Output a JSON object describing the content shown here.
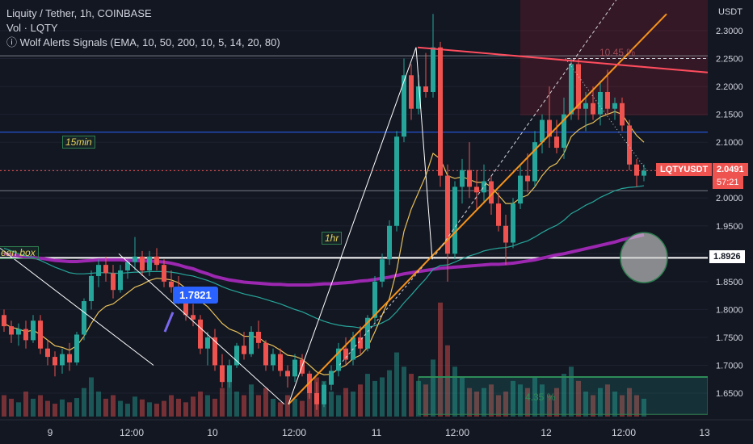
{
  "header": {
    "pair": "Liquity / Tether, 1h, COINBASE",
    "volume": "Vol · LQTY",
    "indicator_icon": "info-icon",
    "indicator": "Wolf Alerts Signals (EMA, 10, 50, 200, 10, 5, 14, 20, 80)"
  },
  "axis": {
    "currency": "USDT",
    "y_ticks": [
      "2.3000",
      "2.2500",
      "2.2000",
      "2.1500",
      "2.1000",
      "2.0500",
      "2.0000",
      "1.9500",
      "1.9000",
      "1.8500",
      "1.8000",
      "1.7500",
      "1.7000",
      "1.6500"
    ],
    "y_tick_values": [
      2.3,
      2.25,
      2.2,
      2.15,
      2.1,
      2.05,
      2.0,
      1.95,
      1.9,
      1.85,
      1.8,
      1.75,
      1.7,
      1.65
    ],
    "x_ticks": [
      "9",
      "12:00",
      "10",
      "12:00",
      "11",
      "12:00",
      "12",
      "12:00",
      "13"
    ]
  },
  "labels": {
    "box_15min": "15min",
    "box_1hr": "1hr",
    "box_green": "een box",
    "callout": "1.7821",
    "pct_upper": "10.45 %",
    "pct_lower": "4.35 %",
    "symbol_tag": "LQTYUSDT",
    "last_price": "2.0491",
    "countdown": "57:21",
    "white_line_price": "1.8926"
  },
  "colors": {
    "background": "#131722",
    "bull": "#26a69a",
    "bear": "#ef5350",
    "ema_short": "#e8c15a",
    "ema_mid": "#26a69a",
    "ema_long": "#9c27b0",
    "orange_trend": "#f7931a",
    "red_trend": "#ff4d5e",
    "blue_level": "#2962ff"
  },
  "chart_data": {
    "type": "candlestick",
    "symbol": "LQTYUSDT",
    "timeframe": "1h",
    "ylim": [
      1.61,
      2.33
    ],
    "levels": {
      "blue": 2.118,
      "gray_upper": 2.255,
      "gray_lower": 2.013,
      "white": 1.8926,
      "last_price": 2.0491
    },
    "candles": [
      {
        "o": 1.79,
        "h": 1.8,
        "l": 1.76,
        "c": 1.77
      },
      {
        "o": 1.77,
        "h": 1.78,
        "l": 1.74,
        "c": 1.755
      },
      {
        "o": 1.755,
        "h": 1.775,
        "l": 1.735,
        "c": 1.765
      },
      {
        "o": 1.765,
        "h": 1.78,
        "l": 1.73,
        "c": 1.745
      },
      {
        "o": 1.745,
        "h": 1.79,
        "l": 1.74,
        "c": 1.78
      },
      {
        "o": 1.78,
        "h": 1.79,
        "l": 1.72,
        "c": 1.73
      },
      {
        "o": 1.73,
        "h": 1.745,
        "l": 1.7,
        "c": 1.715
      },
      {
        "o": 1.715,
        "h": 1.725,
        "l": 1.68,
        "c": 1.7
      },
      {
        "o": 1.7,
        "h": 1.73,
        "l": 1.685,
        "c": 1.72
      },
      {
        "o": 1.72,
        "h": 1.74,
        "l": 1.69,
        "c": 1.705
      },
      {
        "o": 1.705,
        "h": 1.76,
        "l": 1.7,
        "c": 1.755
      },
      {
        "o": 1.755,
        "h": 1.82,
        "l": 1.745,
        "c": 1.815
      },
      {
        "o": 1.815,
        "h": 1.87,
        "l": 1.8,
        "c": 1.86
      },
      {
        "o": 1.86,
        "h": 1.89,
        "l": 1.84,
        "c": 1.88
      },
      {
        "o": 1.88,
        "h": 1.895,
        "l": 1.85,
        "c": 1.865
      },
      {
        "o": 1.865,
        "h": 1.88,
        "l": 1.82,
        "c": 1.835
      },
      {
        "o": 1.835,
        "h": 1.88,
        "l": 1.83,
        "c": 1.87
      },
      {
        "o": 1.87,
        "h": 1.89,
        "l": 1.855,
        "c": 1.885
      },
      {
        "o": 1.885,
        "h": 1.93,
        "l": 1.87,
        "c": 1.895
      },
      {
        "o": 1.895,
        "h": 1.905,
        "l": 1.86,
        "c": 1.87
      },
      {
        "o": 1.87,
        "h": 1.905,
        "l": 1.86,
        "c": 1.895
      },
      {
        "o": 1.895,
        "h": 1.91,
        "l": 1.87,
        "c": 1.88
      },
      {
        "o": 1.88,
        "h": 1.89,
        "l": 1.84,
        "c": 1.85
      },
      {
        "o": 1.85,
        "h": 1.87,
        "l": 1.83,
        "c": 1.84
      },
      {
        "o": 1.84,
        "h": 1.86,
        "l": 1.81,
        "c": 1.82
      },
      {
        "o": 1.82,
        "h": 1.83,
        "l": 1.78,
        "c": 1.79
      },
      {
        "o": 1.79,
        "h": 1.81,
        "l": 1.77,
        "c": 1.782
      },
      {
        "o": 1.782,
        "h": 1.79,
        "l": 1.72,
        "c": 1.73
      },
      {
        "o": 1.73,
        "h": 1.76,
        "l": 1.7,
        "c": 1.75
      },
      {
        "o": 1.75,
        "h": 1.765,
        "l": 1.69,
        "c": 1.7
      },
      {
        "o": 1.7,
        "h": 1.72,
        "l": 1.66,
        "c": 1.67
      },
      {
        "o": 1.67,
        "h": 1.71,
        "l": 1.66,
        "c": 1.7
      },
      {
        "o": 1.7,
        "h": 1.74,
        "l": 1.695,
        "c": 1.735
      },
      {
        "o": 1.735,
        "h": 1.76,
        "l": 1.71,
        "c": 1.72
      },
      {
        "o": 1.72,
        "h": 1.77,
        "l": 1.715,
        "c": 1.76
      },
      {
        "o": 1.76,
        "h": 1.78,
        "l": 1.73,
        "c": 1.74
      },
      {
        "o": 1.74,
        "h": 1.745,
        "l": 1.69,
        "c": 1.7
      },
      {
        "o": 1.7,
        "h": 1.73,
        "l": 1.69,
        "c": 1.72
      },
      {
        "o": 1.72,
        "h": 1.73,
        "l": 1.68,
        "c": 1.69
      },
      {
        "o": 1.69,
        "h": 1.7,
        "l": 1.66,
        "c": 1.68
      },
      {
        "o": 1.68,
        "h": 1.72,
        "l": 1.67,
        "c": 1.71
      },
      {
        "o": 1.71,
        "h": 1.72,
        "l": 1.68,
        "c": 1.685
      },
      {
        "o": 1.685,
        "h": 1.69,
        "l": 1.64,
        "c": 1.65
      },
      {
        "o": 1.65,
        "h": 1.67,
        "l": 1.62,
        "c": 1.63
      },
      {
        "o": 1.63,
        "h": 1.67,
        "l": 1.625,
        "c": 1.665
      },
      {
        "o": 1.665,
        "h": 1.7,
        "l": 1.655,
        "c": 1.69
      },
      {
        "o": 1.69,
        "h": 1.74,
        "l": 1.68,
        "c": 1.73
      },
      {
        "o": 1.73,
        "h": 1.75,
        "l": 1.7,
        "c": 1.71
      },
      {
        "o": 1.71,
        "h": 1.76,
        "l": 1.7,
        "c": 1.75
      },
      {
        "o": 1.75,
        "h": 1.77,
        "l": 1.72,
        "c": 1.73
      },
      {
        "o": 1.73,
        "h": 1.79,
        "l": 1.725,
        "c": 1.785
      },
      {
        "o": 1.785,
        "h": 1.86,
        "l": 1.775,
        "c": 1.85
      },
      {
        "o": 1.85,
        "h": 1.9,
        "l": 1.84,
        "c": 1.89
      },
      {
        "o": 1.89,
        "h": 1.96,
        "l": 1.88,
        "c": 1.95
      },
      {
        "o": 1.95,
        "h": 2.12,
        "l": 1.94,
        "c": 2.11
      },
      {
        "o": 2.11,
        "h": 2.25,
        "l": 2.1,
        "c": 2.22
      },
      {
        "o": 2.22,
        "h": 2.24,
        "l": 2.14,
        "c": 2.16
      },
      {
        "o": 2.16,
        "h": 2.22,
        "l": 2.15,
        "c": 2.2
      },
      {
        "o": 2.2,
        "h": 2.26,
        "l": 2.18,
        "c": 2.19
      },
      {
        "o": 2.19,
        "h": 2.33,
        "l": 2.18,
        "c": 2.27
      },
      {
        "o": 2.27,
        "h": 2.28,
        "l": 2.02,
        "c": 2.04
      },
      {
        "o": 2.04,
        "h": 2.06,
        "l": 1.85,
        "c": 1.9
      },
      {
        "o": 1.9,
        "h": 2.03,
        "l": 1.89,
        "c": 2.02
      },
      {
        "o": 2.02,
        "h": 2.07,
        "l": 1.99,
        "c": 2.05
      },
      {
        "o": 2.05,
        "h": 2.1,
        "l": 2.0,
        "c": 2.02
      },
      {
        "o": 2.02,
        "h": 2.05,
        "l": 1.98,
        "c": 2.01
      },
      {
        "o": 2.01,
        "h": 2.06,
        "l": 1.99,
        "c": 2.03
      },
      {
        "o": 2.03,
        "h": 2.04,
        "l": 1.97,
        "c": 1.99
      },
      {
        "o": 1.99,
        "h": 2.01,
        "l": 1.94,
        "c": 1.95
      },
      {
        "o": 1.95,
        "h": 1.97,
        "l": 1.88,
        "c": 1.92
      },
      {
        "o": 1.92,
        "h": 2.0,
        "l": 1.91,
        "c": 1.99
      },
      {
        "o": 1.99,
        "h": 2.06,
        "l": 1.98,
        "c": 2.04
      },
      {
        "o": 2.04,
        "h": 2.08,
        "l": 2.01,
        "c": 2.03
      },
      {
        "o": 2.03,
        "h": 2.12,
        "l": 2.02,
        "c": 2.1
      },
      {
        "o": 2.1,
        "h": 2.15,
        "l": 2.08,
        "c": 2.14
      },
      {
        "o": 2.14,
        "h": 2.2,
        "l": 2.09,
        "c": 2.11
      },
      {
        "o": 2.11,
        "h": 2.14,
        "l": 2.08,
        "c": 2.09
      },
      {
        "o": 2.09,
        "h": 2.18,
        "l": 2.07,
        "c": 2.15
      },
      {
        "o": 2.15,
        "h": 2.25,
        "l": 2.14,
        "c": 2.24
      },
      {
        "o": 2.24,
        "h": 2.25,
        "l": 2.14,
        "c": 2.16
      },
      {
        "o": 2.16,
        "h": 2.19,
        "l": 2.12,
        "c": 2.17
      },
      {
        "o": 2.17,
        "h": 2.2,
        "l": 2.14,
        "c": 2.15
      },
      {
        "o": 2.15,
        "h": 2.21,
        "l": 2.13,
        "c": 2.19
      },
      {
        "o": 2.19,
        "h": 2.23,
        "l": 2.15,
        "c": 2.16
      },
      {
        "o": 2.16,
        "h": 2.18,
        "l": 2.14,
        "c": 2.17
      },
      {
        "o": 2.17,
        "h": 2.18,
        "l": 2.12,
        "c": 2.13
      },
      {
        "o": 2.13,
        "h": 2.14,
        "l": 2.05,
        "c": 2.06
      },
      {
        "o": 2.06,
        "h": 2.07,
        "l": 2.02,
        "c": 2.04
      },
      {
        "o": 2.04,
        "h": 2.06,
        "l": 2.03,
        "c": 2.049
      }
    ],
    "volume": [
      30,
      25,
      20,
      35,
      25,
      30,
      22,
      18,
      24,
      20,
      26,
      40,
      55,
      35,
      25,
      30,
      22,
      18,
      28,
      24,
      20,
      18,
      22,
      30,
      25,
      20,
      28,
      35,
      30,
      25,
      40,
      50,
      35,
      30,
      45,
      30,
      40,
      25,
      20,
      30,
      25,
      22,
      35,
      55,
      50,
      35,
      30,
      40,
      35,
      45,
      60,
      50,
      55,
      65,
      90,
      70,
      60,
      50,
      45,
      80,
      160,
      100,
      70,
      55,
      40,
      35,
      40,
      45,
      30,
      35,
      50,
      45,
      40,
      55,
      45,
      30,
      40,
      60,
      70,
      50,
      35,
      30,
      40,
      45,
      35,
      30,
      40,
      30,
      25
    ],
    "ema_short": [
      1.775,
      1.768,
      1.765,
      1.76,
      1.763,
      1.755,
      1.745,
      1.735,
      1.732,
      1.727,
      1.735,
      1.752,
      1.775,
      1.795,
      1.806,
      1.81,
      1.82,
      1.83,
      1.84,
      1.845,
      1.852,
      1.856,
      1.855,
      1.853,
      1.848,
      1.838,
      1.83,
      1.815,
      1.805,
      1.79,
      1.775,
      1.765,
      1.76,
      1.752,
      1.752,
      1.75,
      1.74,
      1.735,
      1.727,
      1.718,
      1.716,
      1.711,
      1.7,
      1.688,
      1.683,
      1.684,
      1.694,
      1.7,
      1.712,
      1.718,
      1.732,
      1.76,
      1.79,
      1.82,
      1.87,
      1.94,
      1.98,
      2.01,
      2.04,
      2.08,
      2.07,
      2.04,
      2.035,
      2.038,
      2.033,
      2.028,
      2.028,
      2.02,
      2.005,
      1.99,
      1.99,
      2.0,
      2.005,
      2.02,
      2.04,
      2.055,
      2.062,
      2.08,
      2.11,
      2.122,
      2.13,
      2.135,
      2.145,
      2.15,
      2.155,
      2.15,
      2.13,
      2.112,
      2.1
    ],
    "ema_mid": [
      1.91,
      1.905,
      1.9,
      1.896,
      1.893,
      1.888,
      1.882,
      1.876,
      1.871,
      1.866,
      1.864,
      1.864,
      1.865,
      1.866,
      1.866,
      1.865,
      1.865,
      1.866,
      1.867,
      1.867,
      1.868,
      1.868,
      1.868,
      1.867,
      1.865,
      1.862,
      1.86,
      1.856,
      1.852,
      1.847,
      1.841,
      1.836,
      1.832,
      1.828,
      1.825,
      1.822,
      1.818,
      1.814,
      1.81,
      1.805,
      1.8,
      1.796,
      1.79,
      1.784,
      1.779,
      1.775,
      1.772,
      1.77,
      1.769,
      1.767,
      1.768,
      1.771,
      1.776,
      1.783,
      1.796,
      1.812,
      1.826,
      1.841,
      1.855,
      1.872,
      1.879,
      1.88,
      1.885,
      1.891,
      1.896,
      1.9,
      1.905,
      1.908,
      1.91,
      1.911,
      1.914,
      1.919,
      1.923,
      1.93,
      1.938,
      1.945,
      1.951,
      1.96,
      1.972,
      1.979,
      1.987,
      1.993,
      2.001,
      2.007,
      2.013,
      2.017,
      2.019,
      2.02,
      2.022
    ],
    "ema_long": [
      1.9,
      1.898,
      1.896,
      1.894,
      1.893,
      1.892,
      1.89,
      1.888,
      1.887,
      1.886,
      1.886,
      1.887,
      1.888,
      1.889,
      1.889,
      1.889,
      1.889,
      1.888,
      1.888,
      1.887,
      1.887,
      1.886,
      1.885,
      1.883,
      1.88,
      1.876,
      1.873,
      1.868,
      1.864,
      1.859,
      1.856,
      1.853,
      1.851,
      1.849,
      1.848,
      1.847,
      1.846,
      1.845,
      1.845,
      1.844,
      1.844,
      1.844,
      1.844,
      1.845,
      1.846,
      1.846,
      1.847,
      1.848,
      1.849,
      1.851,
      1.852,
      1.854,
      1.856,
      1.858,
      1.861,
      1.864,
      1.866,
      1.868,
      1.87,
      1.872,
      1.874,
      1.875,
      1.876,
      1.877,
      1.878,
      1.879,
      1.88,
      1.881,
      1.881,
      1.882,
      1.883,
      1.885,
      1.887,
      1.889,
      1.892,
      1.895,
      1.898,
      1.9,
      1.903,
      1.906,
      1.909,
      1.912,
      1.915,
      1.918,
      1.921,
      1.925,
      1.928,
      1.931,
      1.934
    ]
  }
}
